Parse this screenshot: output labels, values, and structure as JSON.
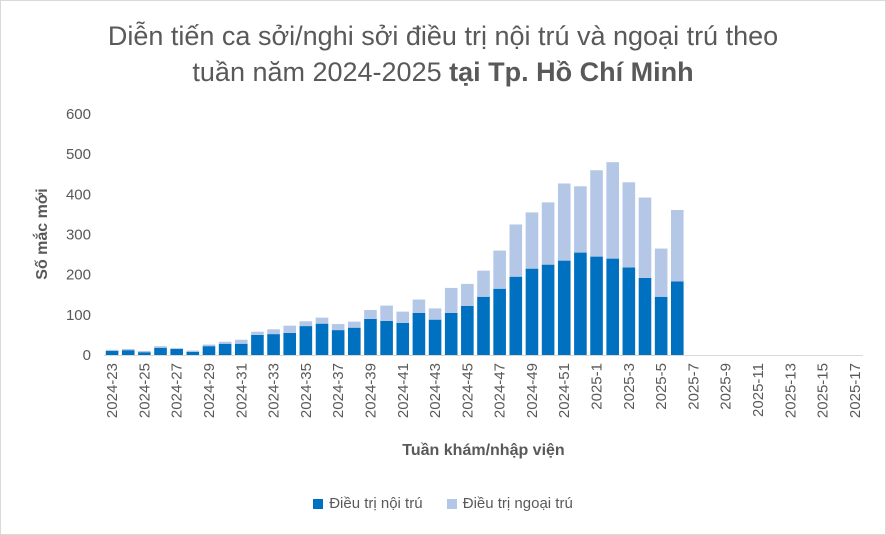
{
  "chart_data": {
    "type": "bar",
    "stacked": true,
    "title_line1": "Diễn tiến ca sởi/nghi sởi điều trị nội trú và ngoại trú theo",
    "title_line2_plain": "tuần năm 2024-2025 ",
    "title_line2_bold": "tại Tp. Hồ Chí Minh",
    "xlabel": "Tuần khám/nhập viện",
    "ylabel": "Số mắc mới",
    "ylim": [
      0,
      600
    ],
    "yticks": [
      0,
      100,
      200,
      300,
      400,
      500,
      600
    ],
    "categories": [
      "2024-23",
      "2024-24",
      "2024-25",
      "2024-26",
      "2024-27",
      "2024-28",
      "2024-29",
      "2024-30",
      "2024-31",
      "2024-32",
      "2024-33",
      "2024-34",
      "2024-35",
      "2024-36",
      "2024-37",
      "2024-38",
      "2024-39",
      "2024-40",
      "2024-41",
      "2024-42",
      "2024-43",
      "2024-44",
      "2024-45",
      "2024-46",
      "2024-47",
      "2024-48",
      "2024-49",
      "2024-50",
      "2024-51",
      "2024-52",
      "2025-1",
      "2025-2",
      "2025-3",
      "2025-4",
      "2025-5",
      "2025-6",
      "2025-7",
      "2025-8",
      "2025-9",
      "2025-10",
      "2025-11",
      "2025-12",
      "2025-13",
      "2025-14",
      "2025-15",
      "2025-16",
      "2025-17"
    ],
    "tick_labels": [
      "2024-23",
      "2024-25",
      "2024-27",
      "2024-29",
      "2024-31",
      "2024-33",
      "2024-35",
      "2024-37",
      "2024-39",
      "2024-41",
      "2024-43",
      "2024-45",
      "2024-47",
      "2024-49",
      "2024-51",
      "2025-1",
      "2025-3",
      "2025-5",
      "2025-7",
      "2025-9",
      "2025-11",
      "2025-13",
      "2025-15",
      "2025-17"
    ],
    "series": [
      {
        "name": "Điều trị nội trú",
        "color": "#0070c0",
        "values": [
          10,
          12,
          7,
          18,
          15,
          8,
          22,
          28,
          28,
          50,
          52,
          55,
          72,
          78,
          62,
          68,
          90,
          85,
          80,
          105,
          88,
          105,
          122,
          145,
          165,
          195,
          215,
          225,
          235,
          255,
          245,
          240,
          218,
          192,
          145,
          183,
          0,
          0,
          0,
          0,
          0,
          0,
          0,
          0,
          0,
          0,
          0
        ]
      },
      {
        "name": "Điều trị ngoại trú",
        "color": "#b4c7e7",
        "values": [
          3,
          3,
          3,
          4,
          2,
          3,
          4,
          5,
          10,
          8,
          12,
          18,
          12,
          15,
          15,
          15,
          22,
          38,
          28,
          33,
          28,
          62,
          55,
          65,
          95,
          130,
          140,
          155,
          192,
          165,
          215,
          240,
          212,
          200,
          120,
          178,
          0,
          0,
          0,
          0,
          0,
          0,
          0,
          0,
          0,
          0,
          0
        ]
      }
    ],
    "grid": false,
    "legend_position": "bottom"
  }
}
